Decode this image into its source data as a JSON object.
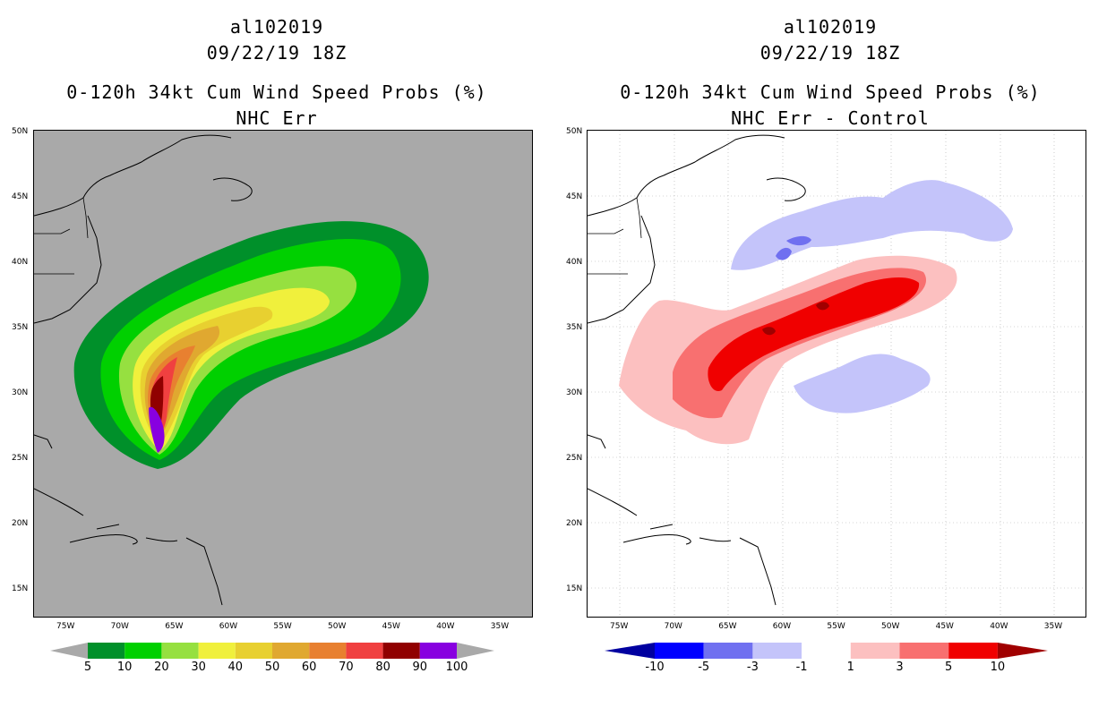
{
  "left_panel": {
    "storm_id": "al102019",
    "datetime": "09/22/19 18Z",
    "title": "0-120h 34kt Cum Wind Speed Probs (%)",
    "subtitle": "NHC Err",
    "background_color": "#a9a9a9",
    "colorbar_labels": [
      "5",
      "10",
      "20",
      "30",
      "40",
      "50",
      "60",
      "70",
      "80",
      "90",
      "100"
    ],
    "colorbar_colors": [
      "#00902a",
      "#00d000",
      "#96e040",
      "#f0f03c",
      "#e8d030",
      "#e0a830",
      "#e88030",
      "#f04040",
      "#900000",
      "#8800e0"
    ]
  },
  "right_panel": {
    "storm_id": "al102019",
    "datetime": "09/22/19 18Z",
    "title": "0-120h 34kt Cum Wind Speed Probs (%)",
    "subtitle": "NHC Err - Control",
    "colorbar_labels": [
      "-10",
      "-5",
      "-3",
      "-1",
      "1",
      "3",
      "5",
      "10"
    ],
    "colorbar_colors": [
      "#0000a0",
      "#0000ff",
      "#7070f0",
      "#c4c4fa",
      "#ffffff",
      "#fcc0c0",
      "#f87070",
      "#f00000",
      "#a00000"
    ]
  },
  "lat_labels": [
    "50N",
    "45N",
    "40N",
    "35N",
    "30N",
    "25N",
    "20N",
    "15N"
  ],
  "lon_labels": [
    "75W",
    "70W",
    "65W",
    "60W",
    "55W",
    "50W",
    "45W",
    "40W",
    "35W"
  ]
}
